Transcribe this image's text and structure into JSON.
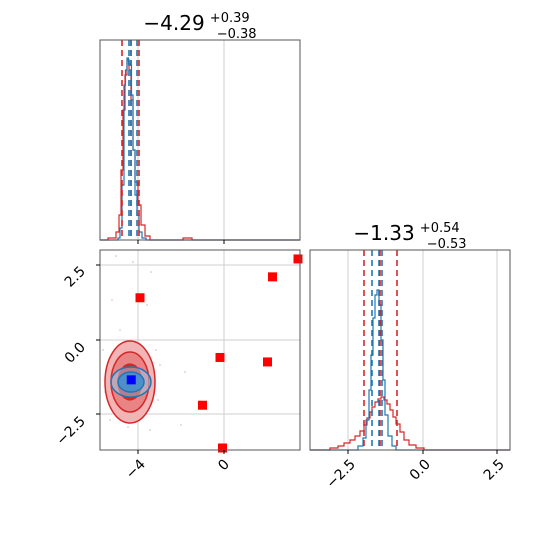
{
  "chart_data": [
    {
      "type": "histogram",
      "panel": "marginal-param-1",
      "title": {
        "value": "−4.29",
        "plus": "+0.39",
        "minus": "−0.38"
      },
      "xlim": [
        -5.5,
        2.5
      ],
      "xticks": [
        -4,
        0
      ],
      "grid": true,
      "series": [
        {
          "color": "#1f77b4",
          "quantiles": [
            -4.31,
            -4.29,
            -3.9
          ]
        },
        {
          "color": "#d62728",
          "quantiles": [
            -4.67,
            -4.29,
            -3.91
          ]
        }
      ]
    },
    {
      "type": "histogram",
      "panel": "marginal-param-2",
      "title": {
        "value": "−1.33",
        "plus": "+0.54",
        "minus": "−0.53"
      },
      "xlim": [
        -3.8,
        2.9
      ],
      "xticks": [
        -2.5,
        0.0,
        2.5
      ],
      "xticklabels": [
        "−2.5",
        "0.0",
        "2.5"
      ],
      "grid": true,
      "series": [
        {
          "color": "#1f77b4",
          "quantiles": [
            -1.66,
            -1.38,
            -1.08
          ]
        },
        {
          "color": "#d62728",
          "quantiles": [
            -1.86,
            -1.33,
            -0.79
          ]
        }
      ]
    },
    {
      "type": "scatter",
      "panel": "joint-param-1-param-2",
      "xlim": [
        -5.5,
        2.5
      ],
      "ylim": [
        -3.7,
        3.0
      ],
      "xticks": [
        -4,
        0
      ],
      "xticklabels": [
        "−4",
        "0"
      ],
      "yticks": [
        2.5,
        0.0,
        -2.5
      ],
      "yticklabels": [
        "2.5",
        "0.0",
        "−2.5"
      ],
      "grid": true,
      "points": [
        {
          "x": -3.9,
          "y": 1.4
        },
        {
          "x": -0.7,
          "y": -0.6
        },
        {
          "x": -1.4,
          "y": -2.2
        },
        {
          "x": 1.2,
          "y": -0.75
        },
        {
          "x": 1.4,
          "y": 2.1
        },
        {
          "x": 2.5,
          "y": 2.7
        },
        {
          "x": -0.6,
          "y": -3.7
        }
      ],
      "truth": {
        "x": -4.25,
        "y": -1.35
      },
      "point_color": "#ff0000",
      "truth_color": "#0000ff"
    }
  ]
}
